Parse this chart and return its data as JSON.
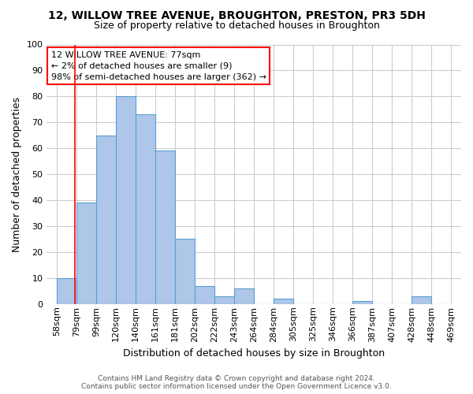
{
  "title": "12, WILLOW TREE AVENUE, BROUGHTON, PRESTON, PR3 5DH",
  "subtitle": "Size of property relative to detached houses in Broughton",
  "xlabel": "Distribution of detached houses by size in Broughton",
  "ylabel": "Number of detached properties",
  "footer_line1": "Contains HM Land Registry data © Crown copyright and database right 2024.",
  "footer_line2": "Contains public sector information licensed under the Open Government Licence v3.0.",
  "bin_labels": [
    "58sqm",
    "79sqm",
    "99sqm",
    "120sqm",
    "140sqm",
    "161sqm",
    "181sqm",
    "202sqm",
    "222sqm",
    "243sqm",
    "264sqm",
    "284sqm",
    "305sqm",
    "325sqm",
    "346sqm",
    "366sqm",
    "387sqm",
    "407sqm",
    "428sqm",
    "448sqm",
    "469sqm"
  ],
  "bar_values": [
    10,
    39,
    65,
    80,
    73,
    59,
    25,
    7,
    3,
    6,
    0,
    2,
    0,
    0,
    0,
    1,
    0,
    0,
    3,
    0
  ],
  "bar_color": "#aec6e8",
  "bar_edge_color": "#5a9fd4",
  "annotation_line1": "12 WILLOW TREE AVENUE: 77sqm",
  "annotation_line2": "← 2% of detached houses are smaller (9)",
  "annotation_line3": "98% of semi-detached houses are larger (362) →",
  "annotation_box_color": "white",
  "annotation_box_edge_color": "red",
  "property_line_color": "red",
  "property_line_x_label": "79sqm",
  "ylim": [
    0,
    100
  ],
  "yticks": [
    0,
    10,
    20,
    30,
    40,
    50,
    60,
    70,
    80,
    90,
    100
  ],
  "grid_color": "#cccccc",
  "background_color": "white",
  "title_fontsize": 10,
  "subtitle_fontsize": 9,
  "ylabel_fontsize": 9,
  "xlabel_fontsize": 9,
  "tick_fontsize": 8,
  "footer_fontsize": 6.5,
  "footer_color": "#555555"
}
